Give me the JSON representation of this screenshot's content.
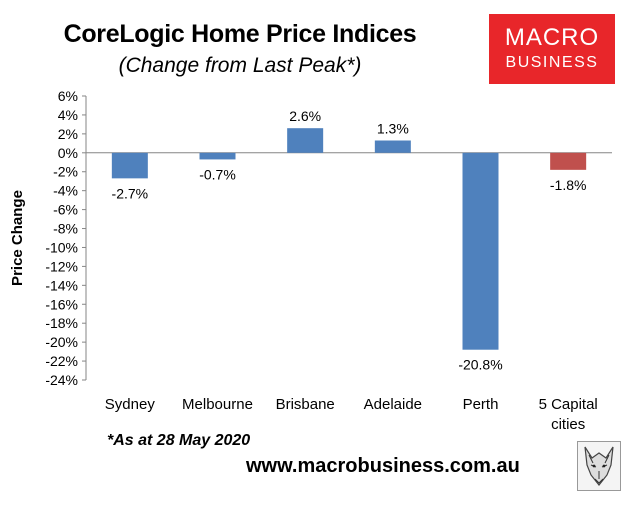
{
  "header": {
    "title": "CoreLogic Home Price Indices",
    "subtitle": "(Change from Last Peak*)"
  },
  "logo": {
    "line1": "MACRO",
    "line2": "BUSINESS",
    "background_color": "#e8262a",
    "text_color": "#ffffff"
  },
  "footnote": "*As at 28 May 2020",
  "website": "www.macrobusiness.com.au",
  "wolf_logo_icon": "wolf-sketch-icon",
  "chart_data": {
    "type": "bar",
    "title": "CoreLogic Home Price Indices",
    "subtitle": "(Change from Last Peak*)",
    "xlabel": "",
    "ylabel": "Price Change",
    "ylim": [
      -24,
      6
    ],
    "yticks": [
      6,
      4,
      2,
      0,
      -2,
      -4,
      -6,
      -8,
      -10,
      -12,
      -14,
      -16,
      -18,
      -20,
      -22,
      -24
    ],
    "ytick_labels": [
      "6%",
      "4%",
      "2%",
      "0%",
      "-2%",
      "-4%",
      "-6%",
      "-8%",
      "-10%",
      "-12%",
      "-14%",
      "-16%",
      "-18%",
      "-20%",
      "-22%",
      "-24%"
    ],
    "categories": [
      [
        "Sydney"
      ],
      [
        "Melbourne"
      ],
      [
        "Brisbane"
      ],
      [
        "Adelaide"
      ],
      [
        "Perth"
      ],
      [
        "5 Capital",
        "cities"
      ]
    ],
    "values": [
      -2.7,
      -0.7,
      2.6,
      1.3,
      -20.8,
      -1.8
    ],
    "data_labels": [
      "-2.7%",
      "-0.7%",
      "2.6%",
      "1.3%",
      "-20.8%",
      "-1.8%"
    ],
    "bar_colors": [
      "#4f81bd",
      "#4f81bd",
      "#4f81bd",
      "#4f81bd",
      "#4f81bd",
      "#c0504d"
    ],
    "grid": false,
    "legend": "none"
  }
}
